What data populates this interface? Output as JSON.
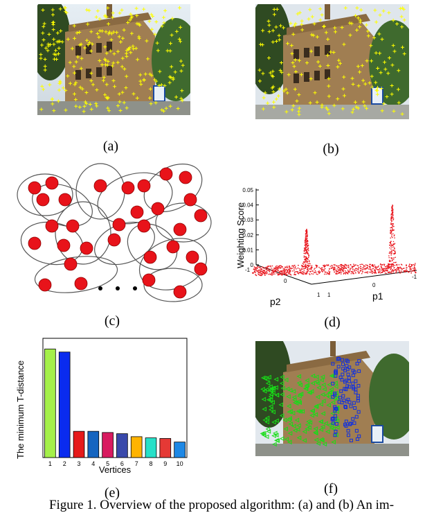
{
  "sublabels": {
    "a": "(a)",
    "b": "(b)",
    "c": "(c)",
    "d": "(d)",
    "e": "(e)",
    "f": "(f)"
  },
  "caption": "Figure 1. Overview of the proposed algorithm: (a) and (b) An im-",
  "panel_d": {
    "ylabel": "Weighting Score",
    "yticks": [
      "0.05",
      "0.04",
      "0.03",
      "0.02",
      "0.01",
      "0"
    ],
    "p2_label": "p2",
    "p1_label": "p1",
    "axis_ticks": {
      "left_neg1": "-1",
      "p2_0": "0",
      "p2_1": "1",
      "p1_1": "1",
      "p1_0": "0",
      "p1_neg1": "-1"
    }
  },
  "chart_data": {
    "type": "bar",
    "ylabel": "The minimum T-distance",
    "xlabel": "Vertices",
    "categories": [
      "1",
      "2",
      "3",
      "4",
      "5",
      "6",
      "7",
      "8",
      "9",
      "10"
    ],
    "values": [
      0.91,
      0.885,
      0.22,
      0.22,
      0.21,
      0.2,
      0.175,
      0.165,
      0.16,
      0.13
    ],
    "colors": [
      "#a4f04a",
      "#0a2bef",
      "#e61a1a",
      "#1565c0",
      "#d81b60",
      "#3949ab",
      "#ffb300",
      "#26e0c8",
      "#e53935",
      "#1e88e5"
    ],
    "ylim": [
      0,
      1
    ]
  },
  "colors": {
    "keypoint": "#ffff00",
    "node": "#e8131a",
    "scatter": "#e8131a",
    "green": "#18dd18",
    "blue": "#1030e0"
  }
}
